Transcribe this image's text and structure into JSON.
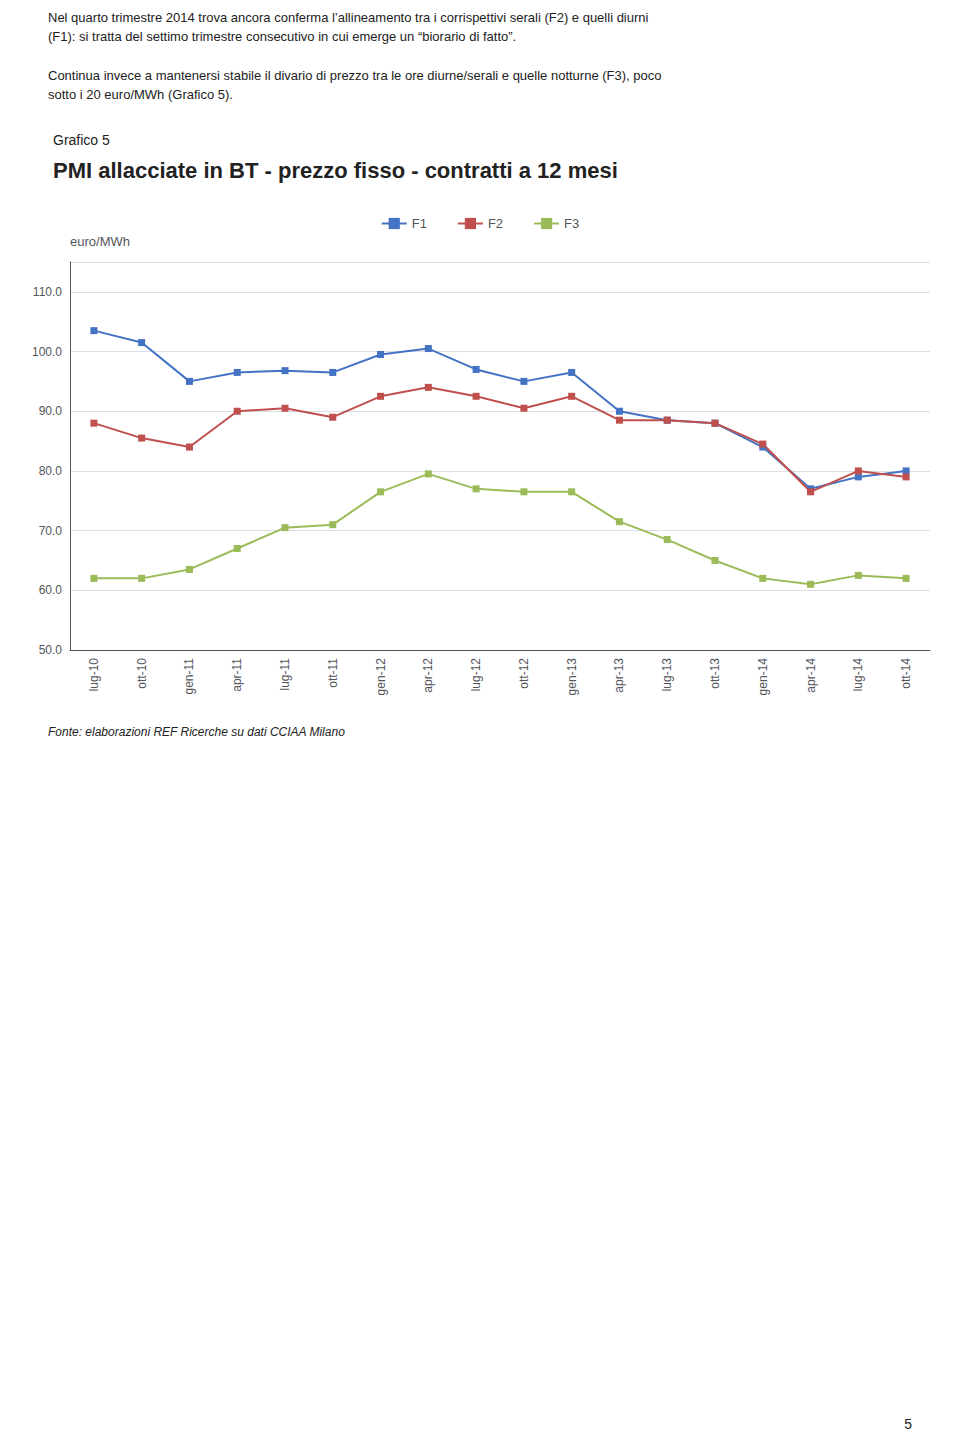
{
  "chart_data": {
    "type": "line",
    "title": "PMI allacciate in BT - prezzo fisso - contratti a 12 mesi",
    "subtitle": "Grafico 5",
    "ylabel": "euro/MWh",
    "annotations": [
      "Nel quarto trimestre 2014 trova ancora conferma l’allineamento tra i corrispettivi serali (F2) e quelli diurni\n(F1): si tratta del settimo trimestre consecutivo in cui emerge un “biorario di fatto”.",
      "Continua invece a mantenersi stabile il divario di prezzo tra le ore diurne/serali e quelle notturne (F3), poco\nsotto i 20 euro/MWh (Grafico 5).",
      "Fonte: elaborazioni REF Ricerche su dati CCIAA Milano",
      "5"
    ],
    "categories": [
      "lug-10",
      "ott-10",
      "gen-11",
      "apr-11",
      "lug-11",
      "ott-11",
      "gen-12",
      "apr-12",
      "lug-12",
      "ott-12",
      "gen-13",
      "apr-13",
      "lug-13",
      "ott-13",
      "gen-14",
      "apr-14",
      "lug-14",
      "ott-14"
    ],
    "series": [
      {
        "name": "F1",
        "color": "#4472C4",
        "values": [
          103.5,
          101.5,
          95.0,
          96.5,
          96.8,
          96.5,
          99.5,
          100.5,
          97.0,
          95.0,
          96.5,
          90.0,
          88.5,
          88.0,
          84.0,
          77.0,
          79.0,
          80.0
        ]
      },
      {
        "name": "F2",
        "color": "#C0504D",
        "values": [
          88.0,
          85.5,
          84.0,
          90.0,
          90.5,
          89.0,
          92.5,
          94.0,
          92.5,
          90.5,
          92.5,
          88.5,
          88.5,
          88.0,
          84.5,
          76.5,
          80.0,
          79.0
        ]
      },
      {
        "name": "F3",
        "color": "#9BBB59",
        "values": [
          62.0,
          62.0,
          63.5,
          67.0,
          70.5,
          71.0,
          76.5,
          79.5,
          77.0,
          76.5,
          76.5,
          71.5,
          68.5,
          65.0,
          62.0,
          61.0,
          62.5,
          62.0
        ]
      }
    ],
    "ylim": [
      50,
      115
    ],
    "yticks": [
      {
        "value": 50,
        "label": "50.0"
      },
      {
        "value": 60,
        "label": "60.0"
      },
      {
        "value": 70,
        "label": "70.0"
      },
      {
        "value": 80,
        "label": "80.0"
      },
      {
        "value": 90,
        "label": "90.0"
      },
      {
        "value": 100,
        "label": "100.0"
      },
      {
        "value": 110,
        "label": "110.0"
      }
    ],
    "grid": true,
    "legend": "top",
    "marker": "square"
  }
}
